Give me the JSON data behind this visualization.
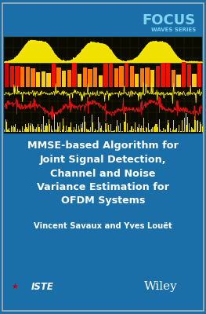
{
  "title_line1": "MMSE-based Algorithm for",
  "title_line2": "Joint Signal Detection,",
  "title_line3": "Channel and Noise",
  "title_line4": "Variance Estimation for",
  "title_line5": "OFDM Systems",
  "authors": "Vincent Savaux and Yves Louët",
  "series_title": "FOCUS",
  "series_subtitle": "WAVES SERIES",
  "bg_color": "#1a6fa8",
  "signal_panel_bg": "#0a0a00",
  "grid_color": "#2a2a00",
  "focus_color": "#80d4f0",
  "title_color": "#ffffff",
  "author_color": "#ffffff",
  "fig_width": 2.63,
  "fig_height": 4.0,
  "dpi": 100
}
